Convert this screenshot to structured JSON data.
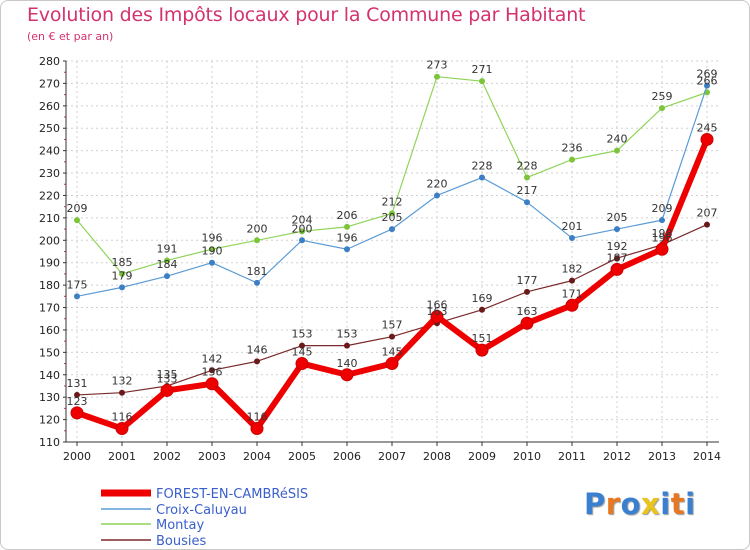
{
  "title": "Evolution des Impôts locaux pour la Commune par Habitant",
  "subtitle": "(en € et par an)",
  "logo": [
    "P",
    "r",
    "o",
    "x",
    "i",
    "t",
    "i"
  ],
  "logo_colors": [
    "#3a7fd0",
    "#e87722",
    "#3a7fd0",
    "#e8c41c",
    "#3a7fd0",
    "#e87722",
    "#3a7fd0"
  ],
  "chart_data": {
    "type": "line",
    "title": "Evolution des Impôts locaux pour la Commune par Habitant",
    "subtitle": "(en € et par an)",
    "xlabel": "",
    "ylabel": "",
    "x": [
      "2000",
      "2001",
      "2002",
      "2003",
      "2004",
      "2005",
      "2006",
      "2007",
      "2008",
      "2009",
      "2010",
      "2011",
      "2012",
      "2013",
      "2014"
    ],
    "ylim": [
      110,
      280
    ],
    "yticks": [
      110,
      120,
      130,
      140,
      150,
      160,
      170,
      180,
      190,
      200,
      210,
      220,
      230,
      240,
      250,
      260,
      270,
      280
    ],
    "grid": true,
    "legend_position": "bottom-left",
    "series": [
      {
        "name": "FOREST-EN-CAMBRéSIS",
        "color": "#ee0000",
        "marker_color": "#ee0000",
        "width": 6,
        "values": [
          123,
          116,
          133,
          136,
          116,
          145,
          140,
          145,
          166,
          151,
          163,
          171,
          187,
          196,
          245
        ]
      },
      {
        "name": "Croix-Caluyau",
        "color": "#5b9bd5",
        "marker_color": "#3d7fc4",
        "width": 1.2,
        "values": [
          175,
          179,
          184,
          190,
          181,
          200,
          196,
          205,
          220,
          228,
          217,
          201,
          205,
          209,
          269
        ]
      },
      {
        "name": "Montay",
        "color": "#8fd45a",
        "marker_color": "#7cc43a",
        "width": 1.2,
        "values": [
          209,
          185,
          191,
          196,
          200,
          204,
          206,
          212,
          273,
          271,
          228,
          236,
          240,
          259,
          266
        ]
      },
      {
        "name": "Bousies",
        "color": "#7a2a2a",
        "marker_color": "#6b1a1a",
        "width": 1.2,
        "values": [
          131,
          132,
          135,
          142,
          146,
          153,
          153,
          157,
          163,
          169,
          177,
          182,
          192,
          198,
          207
        ]
      }
    ]
  }
}
